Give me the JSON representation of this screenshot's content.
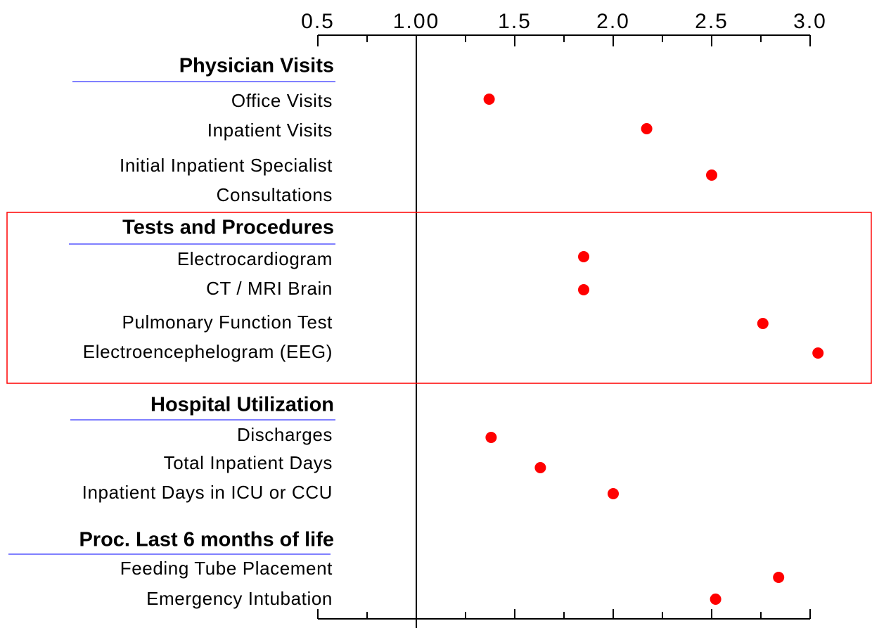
{
  "chart_data": {
    "type": "dot",
    "color": "#ff0000",
    "xlim": [
      0.5,
      3.0
    ],
    "xticks": [
      0.5,
      {
        "value": 1,
        "label": "1.00"
      },
      1.5,
      {
        "value": 2,
        "label": "2.0"
      },
      2.5,
      {
        "value": 3,
        "label": "3.0"
      }
    ],
    "minor_xticks": [
      0.75,
      1.25,
      1.75,
      2.25,
      2.75
    ],
    "reference_x": 1,
    "groups": [
      {
        "name": "Physician Visits",
        "highlighted": false,
        "items": [
          {
            "label": "Office Visits",
            "value": 1.37
          },
          {
            "label": "Inpatient Visits",
            "value": 2.17
          },
          {
            "label": [
              "Initial Inpatient Specialist",
              "Consultations"
            ],
            "value": 2.5
          }
        ]
      },
      {
        "name": "Tests and Procedures",
        "highlighted": true,
        "items": [
          {
            "label": "Electrocardiogram",
            "value": 1.85
          },
          {
            "label": "CT /  MRI Brain",
            "value": 1.85
          },
          {
            "label": "Pulmonary Function Test",
            "value": 2.76
          },
          {
            "label": "Electroencephelogram (EEG)",
            "value": 3.04
          }
        ]
      },
      {
        "name": "Hospital Utilization",
        "highlighted": false,
        "items": [
          {
            "label": "Discharges",
            "value": 1.38
          },
          {
            "label": "Total Inpatient Days",
            "value": 1.63
          },
          {
            "label": "Inpatient Days in ICU or CCU",
            "value": 2.0
          }
        ]
      },
      {
        "name": "Proc. Last 6 months of life",
        "highlighted": false,
        "items": [
          {
            "label": "Feeding Tube Placement",
            "value": 2.84
          },
          {
            "label": "Emergency Intubation",
            "value": 2.52
          }
        ]
      }
    ]
  }
}
